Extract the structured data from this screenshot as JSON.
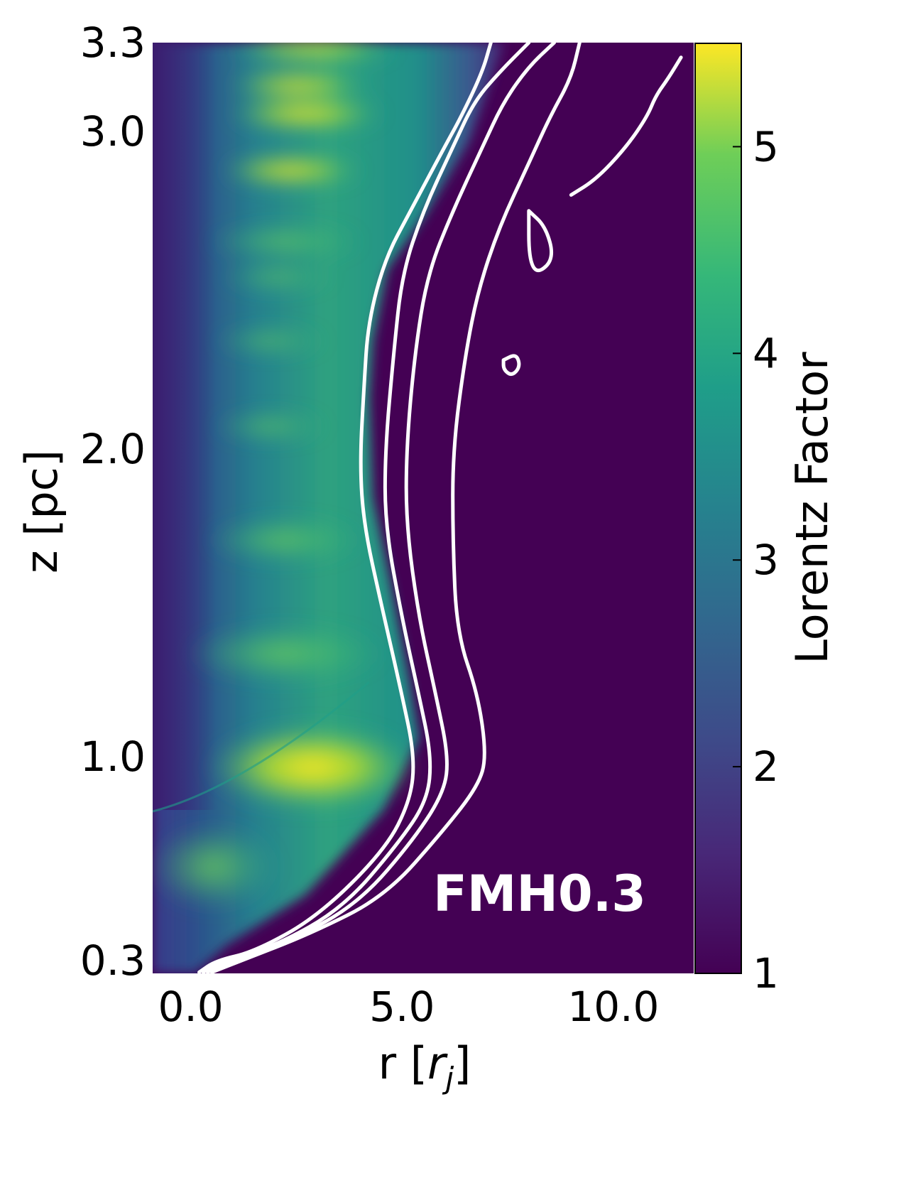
{
  "chart_data": {
    "type": "heatmap",
    "title": "",
    "xlabel": "r [r_j]",
    "xlabel_main": "r [",
    "xlabel_sym": "r",
    "xlabel_sub": "j",
    "xlabel_close": "]",
    "ylabel": "z [pc]",
    "x_ticks": [
      {
        "value": 0.0,
        "label": "0.0"
      },
      {
        "value": 5.0,
        "label": "5.0"
      },
      {
        "value": 10.0,
        "label": "10.0"
      }
    ],
    "y_ticks": [
      {
        "value": 0.3,
        "label": "0.3"
      },
      {
        "value": 1.0,
        "label": "1.0"
      },
      {
        "value": 2.0,
        "label": "2.0"
      },
      {
        "value": 3.0,
        "label": "3.0"
      },
      {
        "value": 3.3,
        "label": "3.3"
      }
    ],
    "xlim": [
      -0.9,
      11.9
    ],
    "ylim": [
      0.26,
      3.3
    ],
    "colorbar": {
      "label": "Lorentz Factor",
      "range": [
        1,
        5.5
      ],
      "colormap": "viridis",
      "ticks": [
        {
          "value": 1,
          "label": "1"
        },
        {
          "value": 2,
          "label": "2"
        },
        {
          "value": 3,
          "label": "3"
        },
        {
          "value": 4,
          "label": "4"
        },
        {
          "value": 5,
          "label": "5"
        }
      ]
    },
    "annotation": "FMH0.3",
    "contour_color": "#ffffff",
    "contours": [
      {
        "points": [
          [
            0.2,
            0.26
          ],
          [
            0.6,
            0.3
          ],
          [
            1.5,
            0.33
          ],
          [
            3.0,
            0.45
          ],
          [
            4.6,
            0.68
          ],
          [
            5.2,
            0.85
          ],
          [
            5.3,
            1.0
          ],
          [
            5.0,
            1.2
          ],
          [
            4.5,
            1.5
          ],
          [
            4.1,
            1.75
          ],
          [
            4.0,
            1.95
          ],
          [
            4.1,
            2.2
          ],
          [
            4.2,
            2.4
          ],
          [
            4.6,
            2.6
          ],
          [
            5.2,
            2.75
          ],
          [
            6.0,
            2.95
          ],
          [
            6.4,
            3.05
          ],
          [
            6.9,
            3.2
          ],
          [
            7.1,
            3.3
          ]
        ]
      },
      {
        "points": [
          [
            0.3,
            0.26
          ],
          [
            0.8,
            0.3
          ],
          [
            2.0,
            0.35
          ],
          [
            3.6,
            0.48
          ],
          [
            4.9,
            0.7
          ],
          [
            5.6,
            0.85
          ],
          [
            5.7,
            1.0
          ],
          [
            5.4,
            1.2
          ],
          [
            5.0,
            1.45
          ],
          [
            4.6,
            1.75
          ],
          [
            4.6,
            2.0
          ],
          [
            4.8,
            2.3
          ],
          [
            5.0,
            2.55
          ],
          [
            5.5,
            2.75
          ],
          [
            6.2,
            2.95
          ],
          [
            6.7,
            3.1
          ],
          [
            7.3,
            3.2
          ],
          [
            8.0,
            3.3
          ]
        ]
      },
      {
        "points": [
          [
            0.4,
            0.26
          ],
          [
            1.0,
            0.3
          ],
          [
            2.4,
            0.37
          ],
          [
            4.0,
            0.5
          ],
          [
            5.3,
            0.72
          ],
          [
            6.0,
            0.88
          ],
          [
            6.1,
            1.0
          ],
          [
            5.8,
            1.2
          ],
          [
            5.4,
            1.45
          ],
          [
            5.1,
            1.75
          ],
          [
            5.1,
            2.0
          ],
          [
            5.3,
            2.3
          ],
          [
            5.6,
            2.55
          ],
          [
            6.2,
            2.75
          ],
          [
            6.9,
            2.95
          ],
          [
            7.4,
            3.1
          ],
          [
            8.0,
            3.22
          ],
          [
            8.6,
            3.3
          ]
        ]
      },
      {
        "points": [
          [
            0.5,
            0.26
          ],
          [
            1.2,
            0.3
          ],
          [
            2.8,
            0.39
          ],
          [
            4.6,
            0.52
          ],
          [
            6.0,
            0.75
          ],
          [
            6.8,
            0.9
          ],
          [
            7.0,
            1.0
          ],
          [
            6.8,
            1.2
          ],
          [
            6.3,
            1.4
          ],
          [
            6.2,
            1.7
          ],
          [
            6.2,
            2.0
          ],
          [
            6.5,
            2.3
          ],
          [
            6.8,
            2.5
          ],
          [
            7.3,
            2.7
          ],
          [
            8.0,
            2.9
          ],
          [
            8.5,
            3.05
          ],
          [
            9.0,
            3.18
          ],
          [
            9.2,
            3.3
          ]
        ]
      },
      {
        "points": [
          [
            9.0,
            2.8
          ],
          [
            9.6,
            2.85
          ],
          [
            10.3,
            2.95
          ],
          [
            10.8,
            3.05
          ],
          [
            11.0,
            3.12
          ],
          [
            11.3,
            3.18
          ],
          [
            11.6,
            3.25
          ]
        ]
      },
      {
        "points": [
          [
            8.0,
            2.75
          ],
          [
            8.4,
            2.7
          ],
          [
            8.6,
            2.6
          ],
          [
            8.2,
            2.55
          ],
          [
            8.0,
            2.6
          ],
          [
            8.0,
            2.75
          ]
        ]
      },
      {
        "points": [
          [
            7.4,
            2.28
          ],
          [
            7.7,
            2.3
          ],
          [
            7.8,
            2.26
          ],
          [
            7.6,
            2.23
          ],
          [
            7.4,
            2.25
          ],
          [
            7.4,
            2.28
          ]
        ]
      }
    ]
  }
}
